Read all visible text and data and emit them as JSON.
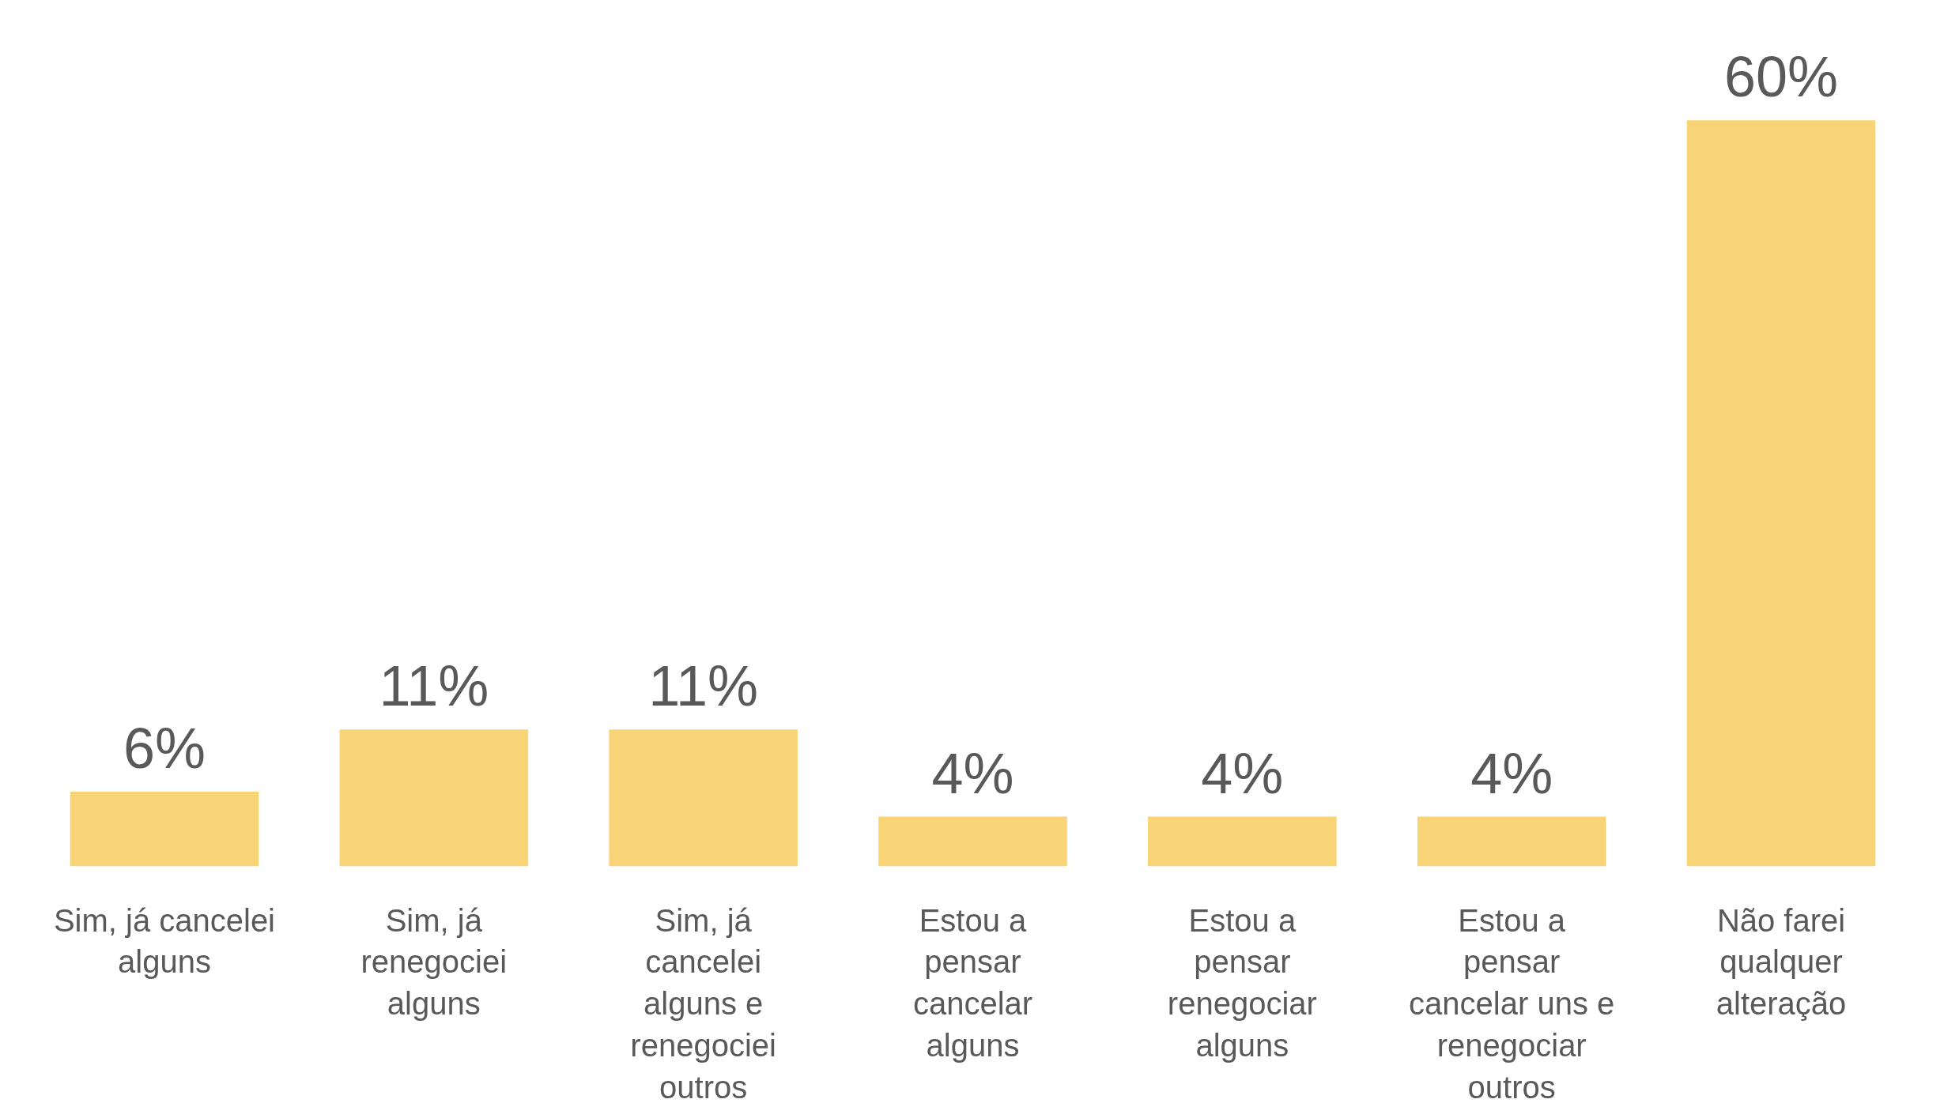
{
  "chart_data": {
    "type": "bar",
    "categories": [
      "Sim, já cancelei\nalguns",
      "Sim, já\nrenegociei\nalguns",
      "Sim, já\ncancelei\nalguns e\nrenegociei\noutros",
      "Estou a\npensar\ncancelar\nalguns",
      "Estou a\npensar\nrenegociar\nalguns",
      "Estou a\npensar\ncancelar uns e\nrenegociar\noutros",
      "Não farei\nqualquer\nalteração"
    ],
    "values": [
      6,
      11,
      11,
      4,
      4,
      4,
      60
    ],
    "value_labels": [
      "6%",
      "11%",
      "11%",
      "4%",
      "4%",
      "4%",
      "60%"
    ],
    "color": "#f9d477",
    "tick_labels": "x",
    "grid": false
  }
}
